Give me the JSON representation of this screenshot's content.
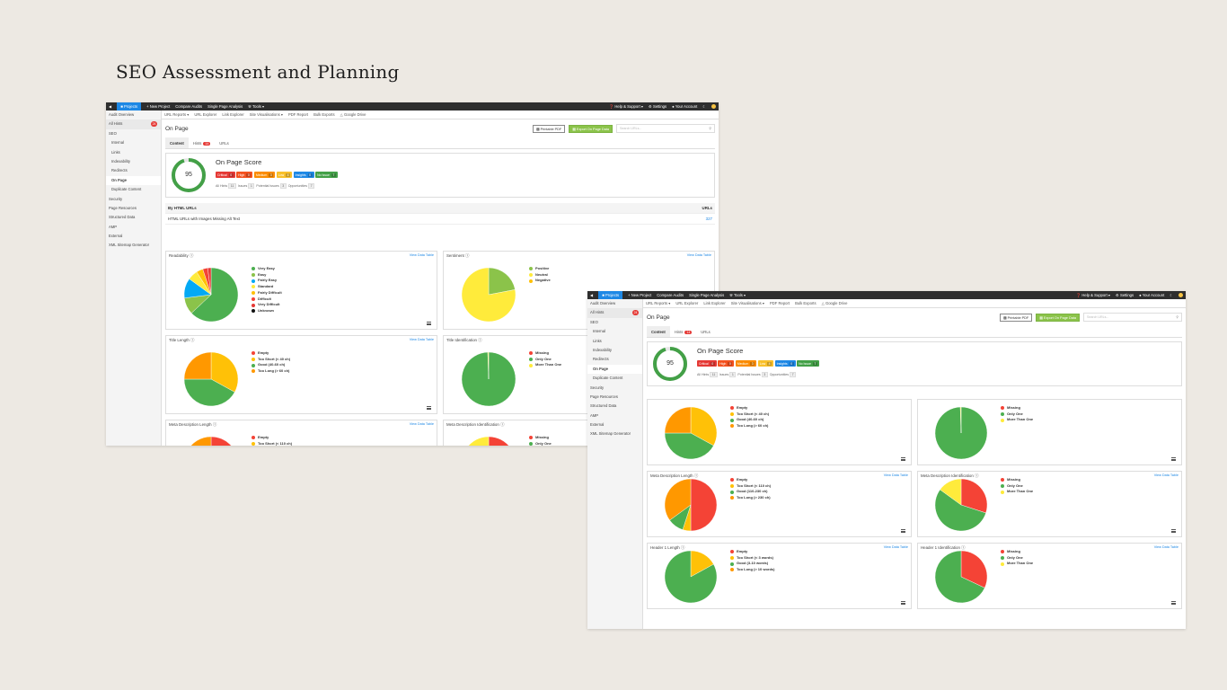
{
  "slide": {
    "title": "SEO Assessment and Planning"
  },
  "app": {
    "topbar": {
      "projects": "Projects",
      "new_project": "New Project",
      "compare": "Compare Audits",
      "single": "Single Page Analysis",
      "tools": "Tools",
      "help": "Help & Support",
      "settings": "Settings",
      "account": "Your Account"
    },
    "sidebar": {
      "audit_overview": "Audit Overview",
      "all_hints": "All Hints",
      "all_hints_count": "24",
      "seo": "SEO",
      "internal": "Internal",
      "links": "Links",
      "indexability": "Indexability",
      "redirects": "Redirects",
      "on_page": "On Page",
      "duplicate": "Duplicate Content",
      "security": "Security",
      "page_resources": "Page Resources",
      "structured": "Structured Data",
      "amp": "AMP",
      "external": "External",
      "xml": "XML Sitemap Generator"
    },
    "subnav": {
      "url_reports": "URL Reports",
      "url_explorer": "URL Explorer",
      "link_explorer": "Link Explorer",
      "site_vis": "Site Visualisations",
      "pdf_report": "PDF Report",
      "bulk_exports": "Bulk Exports",
      "google_drive": "Google Drive"
    },
    "header": {
      "page_title": "On Page",
      "printable_pdf": "Printable PDF",
      "export": "Export On Page Data",
      "search_placeholder": "Search URLs..."
    },
    "tabs": {
      "content": "Content",
      "hints": "Hints",
      "hints_count": "14",
      "urls": "URLs"
    },
    "score": {
      "value": "95",
      "fraction": 0.95,
      "title": "On Page Score",
      "pills": [
        {
          "label": "Critical",
          "count": "0",
          "color": "#e53935"
        },
        {
          "label": "High",
          "count": "0",
          "color": "#f4511e"
        },
        {
          "label": "Medium",
          "count": "3",
          "color": "#fb8c00"
        },
        {
          "label": "Low",
          "count": "4",
          "color": "#f9c02a"
        },
        {
          "label": "Insights",
          "count": "0",
          "color": "#1e88e5"
        },
        {
          "label": "No Issue",
          "count": "7",
          "color": "#43a047"
        }
      ],
      "all_hints": "All Hints",
      "all_hints_n": "11",
      "issues": "Issues",
      "issues_n": "1",
      "potential": "Potential Issues",
      "potential_n": "3",
      "opps": "Opportunities",
      "opps_n": "7"
    },
    "table": {
      "col1": "By HTML URLs",
      "col2": "URLs",
      "row1": "HTML URLs with Images Missing Alt Text",
      "row1_val": "327"
    },
    "view_data_table": "View Data Table"
  },
  "charts": {
    "readability": {
      "title": "Readability",
      "labels": [
        "Very Easy",
        "Easy",
        "Fairly Easy",
        "Standard",
        "Fairly Difficult",
        "Difficult",
        "Very Difficult",
        "Unknown"
      ],
      "colors": [
        "#4caf50",
        "#8bc34a",
        "#03a9f4",
        "#ffeb3b",
        "#ffc107",
        "#f44336",
        "#e53935",
        "#111111"
      ],
      "values": [
        63,
        10,
        12,
        6,
        4,
        3,
        2,
        0
      ]
    },
    "sentiment": {
      "title": "Sentiment",
      "labels": [
        "Positive",
        "Neutral",
        "Negative"
      ],
      "colors": [
        "#8bc34a",
        "#ffeb3b",
        "#ffc107"
      ],
      "values": [
        22,
        78,
        0
      ]
    },
    "title_length": {
      "title": "Title Length",
      "labels": [
        "Empty",
        "Too Short (< 40 ch)",
        "Good (40-60 ch)",
        "Too Long (> 60 ch)"
      ],
      "colors": [
        "#f44336",
        "#ffc107",
        "#4caf50",
        "#ff9800"
      ],
      "values": [
        0,
        33,
        42,
        25
      ]
    },
    "title_ident": {
      "title": "Title Identification",
      "labels": [
        "Missing",
        "Only One",
        "More Than One"
      ],
      "colors": [
        "#f44336",
        "#4caf50",
        "#ffeb3b"
      ],
      "values": [
        0,
        99.5,
        0.5
      ]
    },
    "meta_length": {
      "title": "Meta Description Length",
      "labels": [
        "Empty",
        "Too Short (< 110 ch)",
        "Good (110-230 ch)",
        "Too Long (> 230 ch)"
      ],
      "colors": [
        "#f44336",
        "#ffc107",
        "#4caf50",
        "#ff9800"
      ],
      "values": [
        50,
        5,
        10,
        35
      ]
    },
    "meta_ident": {
      "title": "Meta Description Identification",
      "labels": [
        "Missing",
        "Only One",
        "More Than One"
      ],
      "colors": [
        "#f44336",
        "#4caf50",
        "#ffeb3b"
      ],
      "values": [
        30,
        55,
        15
      ]
    },
    "h1_length": {
      "title": "Header 1 Length",
      "labels": [
        "Empty",
        "Too Short (< 3 words)",
        "Good (3-10 words)",
        "Too Long (> 10 words)"
      ],
      "colors": [
        "#f44336",
        "#ffc107",
        "#4caf50",
        "#ff9800"
      ],
      "values": [
        0,
        17,
        83,
        0
      ]
    },
    "h1_ident": {
      "title": "Header 1 Identification",
      "labels": [
        "Missing",
        "Only One",
        "More Than One"
      ],
      "colors": [
        "#f44336",
        "#4caf50",
        "#ffeb3b"
      ],
      "values": [
        32,
        68,
        0
      ]
    }
  }
}
